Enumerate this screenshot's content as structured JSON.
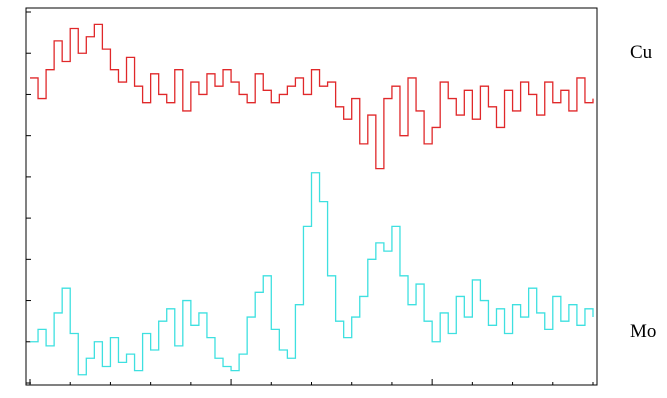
{
  "chart_data": {
    "type": "line",
    "title": "",
    "xlabel": "",
    "ylabel": "",
    "xlim": [
      0,
      280
    ],
    "ylim": [
      0,
      9
    ],
    "grid": false,
    "legend": "none",
    "line_style": "step",
    "series": [
      {
        "name": "Cu",
        "color": "#e0282a",
        "x": [
          0,
          4,
          8,
          12,
          16,
          20,
          24,
          28,
          32,
          36,
          40,
          44,
          48,
          52,
          56,
          60,
          64,
          68,
          72,
          76,
          80,
          84,
          88,
          92,
          96,
          100,
          104,
          108,
          112,
          116,
          120,
          124,
          128,
          132,
          136,
          140,
          144,
          148,
          152,
          156,
          160,
          164,
          168,
          172,
          176,
          180,
          184,
          188,
          192,
          196,
          200,
          204,
          208,
          212,
          216,
          220,
          224,
          228,
          232,
          236,
          240,
          244,
          248,
          252,
          256,
          260,
          264,
          268,
          272,
          276,
          280
        ],
        "values": [
          7.4,
          6.9,
          7.6,
          8.3,
          7.8,
          8.6,
          8.0,
          8.4,
          8.7,
          8.1,
          7.6,
          7.3,
          7.9,
          7.2,
          6.8,
          7.5,
          7.0,
          6.8,
          7.6,
          6.6,
          7.3,
          7.0,
          7.5,
          7.2,
          7.6,
          7.3,
          7.0,
          6.8,
          7.5,
          7.1,
          6.8,
          7.0,
          7.2,
          7.4,
          7.0,
          7.6,
          7.2,
          7.3,
          6.7,
          6.4,
          6.9,
          5.8,
          6.5,
          5.2,
          6.9,
          7.2,
          6.0,
          7.4,
          6.6,
          5.8,
          6.2,
          7.3,
          6.9,
          6.5,
          7.1,
          6.4,
          7.2,
          6.7,
          6.2,
          7.1,
          6.6,
          7.3,
          7.0,
          6.5,
          7.3,
          6.8,
          7.1,
          6.6,
          7.4,
          6.8,
          6.9
        ]
      },
      {
        "name": "Mo",
        "color": "#3ee0e0",
        "x": [
          0,
          4,
          8,
          12,
          16,
          20,
          24,
          28,
          32,
          36,
          40,
          44,
          48,
          52,
          56,
          60,
          64,
          68,
          72,
          76,
          80,
          84,
          88,
          92,
          96,
          100,
          104,
          108,
          112,
          116,
          120,
          124,
          128,
          132,
          136,
          140,
          144,
          148,
          152,
          156,
          160,
          164,
          168,
          172,
          176,
          180,
          184,
          188,
          192,
          196,
          200,
          204,
          208,
          212,
          216,
          220,
          224,
          228,
          232,
          236,
          240,
          244,
          248,
          252,
          256,
          260,
          264,
          268,
          272,
          276,
          280
        ],
        "values": [
          1.0,
          1.3,
          0.9,
          1.7,
          2.3,
          1.2,
          0.2,
          0.6,
          1.0,
          0.4,
          1.1,
          0.5,
          0.7,
          0.3,
          1.2,
          0.8,
          1.5,
          1.8,
          0.9,
          2.0,
          1.4,
          1.7,
          1.1,
          0.6,
          0.4,
          0.3,
          0.7,
          1.6,
          2.2,
          2.6,
          1.3,
          0.8,
          0.6,
          1.9,
          3.8,
          5.1,
          4.4,
          2.6,
          1.5,
          1.1,
          1.6,
          2.1,
          3.0,
          3.4,
          3.2,
          3.8,
          2.6,
          1.9,
          2.4,
          1.5,
          1.0,
          1.7,
          1.2,
          2.1,
          1.6,
          2.5,
          2.0,
          1.4,
          1.8,
          1.2,
          1.9,
          1.6,
          2.3,
          1.7,
          1.3,
          2.1,
          1.5,
          1.9,
          1.4,
          1.8,
          1.6
        ]
      }
    ]
  },
  "labels": {
    "cu": "Cu",
    "mo": "Mo"
  }
}
